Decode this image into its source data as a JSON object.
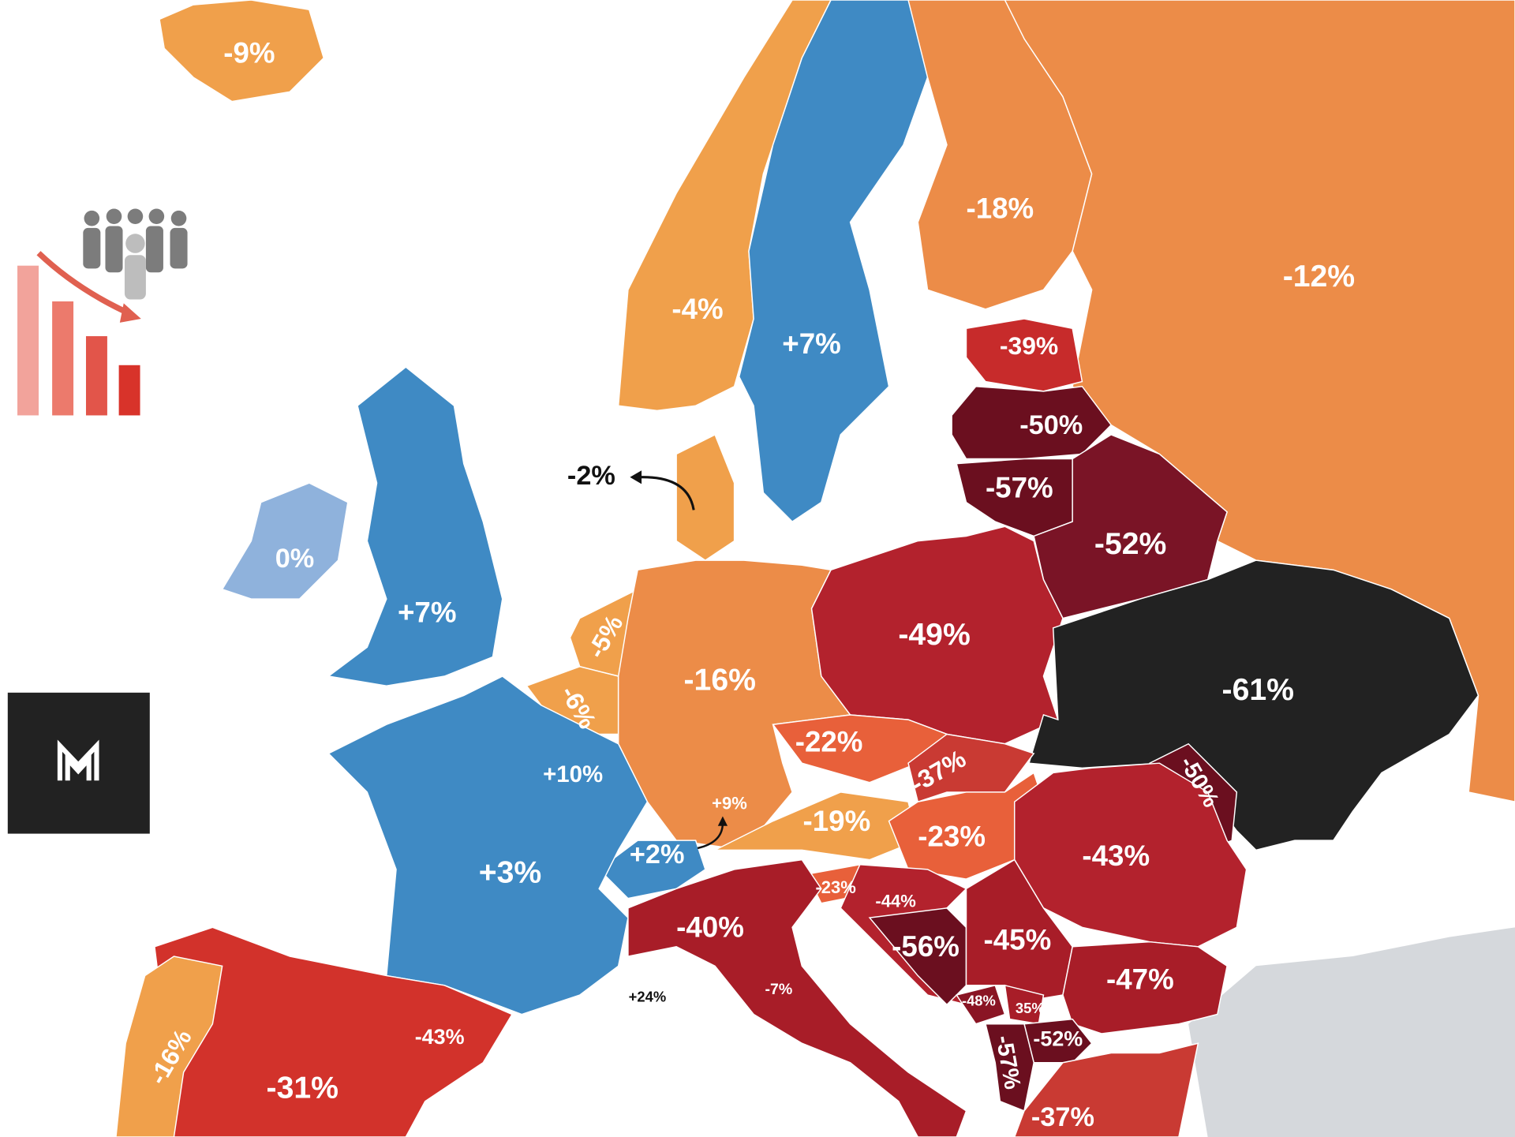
{
  "map": {
    "regions": [
      {
        "label": "-9%",
        "color": "#f0a04b"
      },
      {
        "label": "-4%",
        "color": "#f0a04b"
      },
      {
        "label": "+7%",
        "color": "#3f8ac4"
      },
      {
        "label": "-18%",
        "color": "#ec8c48"
      },
      {
        "label": "-12%",
        "color": "#ec8c48"
      },
      {
        "label": "-39%",
        "color": "#c72b2b"
      },
      {
        "label": "-50%",
        "color": "#6b0f1f"
      },
      {
        "label": "-57%",
        "color": "#6b0f1f"
      },
      {
        "label": "-52%",
        "color": "#7a1426"
      },
      {
        "label": "0%",
        "color": "#8fb2dc"
      },
      {
        "label": "+7%",
        "color": "#3f8ac4"
      },
      {
        "label": "-2%",
        "color": "#f0a04b"
      },
      {
        "label": "-5%",
        "color": "#f0a04b"
      },
      {
        "label": "-6%",
        "color": "#f0a04b"
      },
      {
        "label": "+10%",
        "color": "#3f8ac4"
      },
      {
        "label": "-16%",
        "color": "#ec8c48"
      },
      {
        "label": "-49%",
        "color": "#b3222d"
      },
      {
        "label": "-61%",
        "color": "#222222"
      },
      {
        "label": "-22%",
        "color": "#e8603a"
      },
      {
        "label": "-37%",
        "color": "#c93a33"
      },
      {
        "label": "-50%",
        "color": "#6b0f1f"
      },
      {
        "label": "-19%",
        "color": "#f0a04b"
      },
      {
        "label": "-23%",
        "color": "#e8603a"
      },
      {
        "label": "+9%",
        "color": "#f0a04b"
      },
      {
        "label": "+2%",
        "color": "#3f8ac4"
      },
      {
        "label": "+3%",
        "color": "#3f8ac4"
      },
      {
        "label": "-43%",
        "color": "#b3222d"
      },
      {
        "label": "-23%",
        "color": "#e8603a"
      },
      {
        "label": "-44%",
        "color": "#b3222d"
      },
      {
        "label": "-40%",
        "color": "#a81d28"
      },
      {
        "label": "-56%",
        "color": "#6b0f1f"
      },
      {
        "label": "-45%",
        "color": "#a81d28"
      },
      {
        "label": "-47%",
        "color": "#a81d28"
      },
      {
        "label": "-7%",
        "color": "#a81d28"
      },
      {
        "label": "+24%",
        "color": "#3f8ac4"
      },
      {
        "label": "-43%",
        "color": "#d2322b"
      },
      {
        "label": "-31%",
        "color": "#d2322b"
      },
      {
        "label": "-16%",
        "color": "#f0a04b"
      },
      {
        "label": "-48%",
        "color": "#8a1524"
      },
      {
        "label": "35%",
        "color": "#a81d28"
      },
      {
        "label": "-52%",
        "color": "#6b0f1f"
      },
      {
        "label": "-57%",
        "color": "#6b0f1f"
      },
      {
        "label": "-37%",
        "color": "#c93a33"
      }
    ]
  }
}
